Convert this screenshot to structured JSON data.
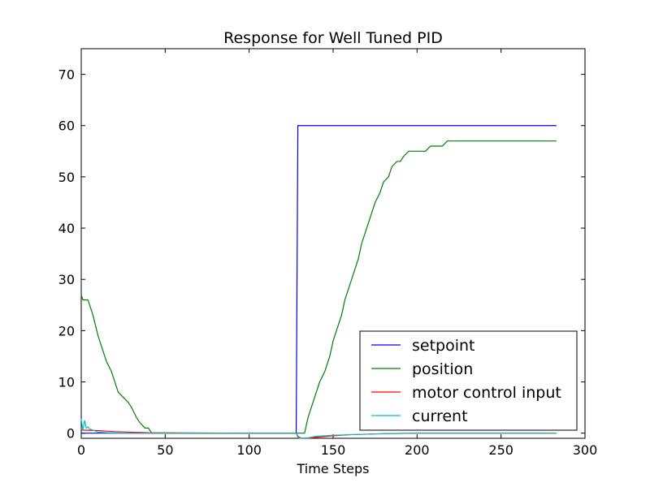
{
  "chart_data": {
    "type": "line",
    "title": "Response for Well Tuned PID",
    "xlabel": "Time Steps",
    "ylabel": "",
    "xlim": [
      0,
      300
    ],
    "ylim": [
      -1,
      75
    ],
    "xticks": [
      0,
      50,
      100,
      150,
      200,
      250,
      300
    ],
    "yticks": [
      0,
      10,
      20,
      30,
      40,
      50,
      60,
      70
    ],
    "grid": false,
    "legend_position": "lower-right",
    "series": [
      {
        "name": "setpoint",
        "color": "#0000ff",
        "x": [
          0,
          128,
          129,
          283
        ],
        "y": [
          0,
          0,
          60,
          60
        ]
      },
      {
        "name": "position",
        "color": "#008000",
        "x": [
          0,
          1,
          4,
          7,
          10,
          12,
          15,
          18,
          20,
          22,
          25,
          28,
          30,
          33,
          35,
          38,
          40,
          42,
          50,
          100,
          128,
          130,
          133,
          135,
          137,
          140,
          142,
          145,
          148,
          150,
          152,
          155,
          157,
          160,
          162,
          165,
          167,
          170,
          172,
          175,
          178,
          180,
          183,
          185,
          188,
          190,
          192,
          195,
          200,
          205,
          208,
          210,
          212,
          215,
          218,
          220,
          225,
          230,
          250,
          283
        ],
        "y": [
          27,
          26,
          26,
          23,
          19,
          17,
          14,
          12,
          10,
          8,
          7,
          6,
          5,
          3,
          2,
          1,
          1,
          0,
          0,
          0,
          0,
          0,
          0,
          3,
          5,
          8,
          10,
          12,
          15,
          18,
          20,
          23,
          26,
          29,
          31,
          34,
          37,
          40,
          42,
          45,
          47,
          49,
          50,
          52,
          53,
          53,
          54,
          55,
          55,
          55,
          56,
          56,
          56,
          56,
          57,
          57,
          57,
          57,
          57,
          57
        ]
      },
      {
        "name": "motor control input",
        "color": "#ff0000",
        "x": [
          0,
          10,
          20,
          30,
          40,
          60,
          100,
          128,
          129,
          131,
          135,
          140,
          150,
          160,
          170,
          180,
          190,
          200,
          220,
          283
        ],
        "y": [
          0.6,
          0.5,
          0.3,
          0.2,
          0.1,
          0.05,
          0,
          0,
          -0.6,
          -1,
          -1,
          -0.8,
          -0.5,
          -0.3,
          -0.2,
          -0.1,
          -0.05,
          0,
          0,
          0
        ]
      },
      {
        "name": "current",
        "color": "#00bfbf",
        "x": [
          0,
          1,
          2,
          3,
          4,
          5,
          7,
          10,
          15,
          20,
          30,
          50,
          100,
          128,
          129,
          130,
          135,
          140,
          150,
          160,
          170,
          180,
          200,
          283
        ],
        "y": [
          2.8,
          0.5,
          2.5,
          1,
          1.2,
          0.8,
          0.6,
          0.2,
          0.1,
          0.05,
          0,
          0,
          0,
          0,
          -0.8,
          -1,
          -0.9,
          -0.6,
          -0.4,
          -0.3,
          -0.2,
          -0.1,
          0,
          0
        ]
      }
    ]
  }
}
